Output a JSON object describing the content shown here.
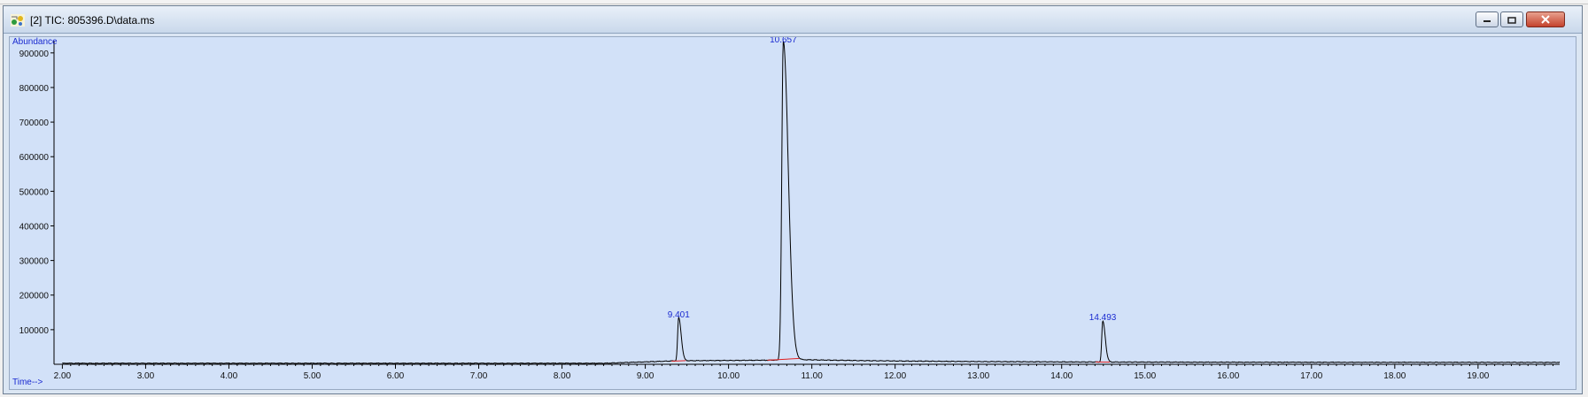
{
  "window": {
    "title": "[2] TIC: 805396.D\\data.ms",
    "icon": "chromatogram-app-icon",
    "controls": [
      "minimize-icon",
      "restore-icon",
      "close-icon"
    ]
  },
  "colors": {
    "plot_background": "#d2e1f8",
    "trace": "#000000",
    "peak_label": "#1a2ad0",
    "baseline_marker": "#e02020"
  },
  "chart_data": {
    "type": "line",
    "ylabel": "Abundance",
    "xlabel": "Time-->",
    "xlim": [
      1.9,
      19.98
    ],
    "ylim": [
      0,
      920000
    ],
    "x_ticks": [
      "2.00",
      "3.00",
      "4.00",
      "5.00",
      "6.00",
      "7.00",
      "8.00",
      "9.00",
      "10.00",
      "11.00",
      "12.00",
      "13.00",
      "14.00",
      "15.00",
      "16.00",
      "17.00",
      "18.00",
      "19.00"
    ],
    "y_ticks": [
      "100000",
      "200000",
      "300000",
      "400000",
      "500000",
      "600000",
      "700000",
      "800000",
      "900000"
    ],
    "baseline": 3000,
    "peaks": [
      {
        "label": "9.401",
        "rt": 9.401,
        "height": 125000
      },
      {
        "label": "10.657",
        "rt": 10.657,
        "height": 920000
      },
      {
        "label": "14.493",
        "rt": 14.493,
        "height": 118000
      }
    ]
  }
}
